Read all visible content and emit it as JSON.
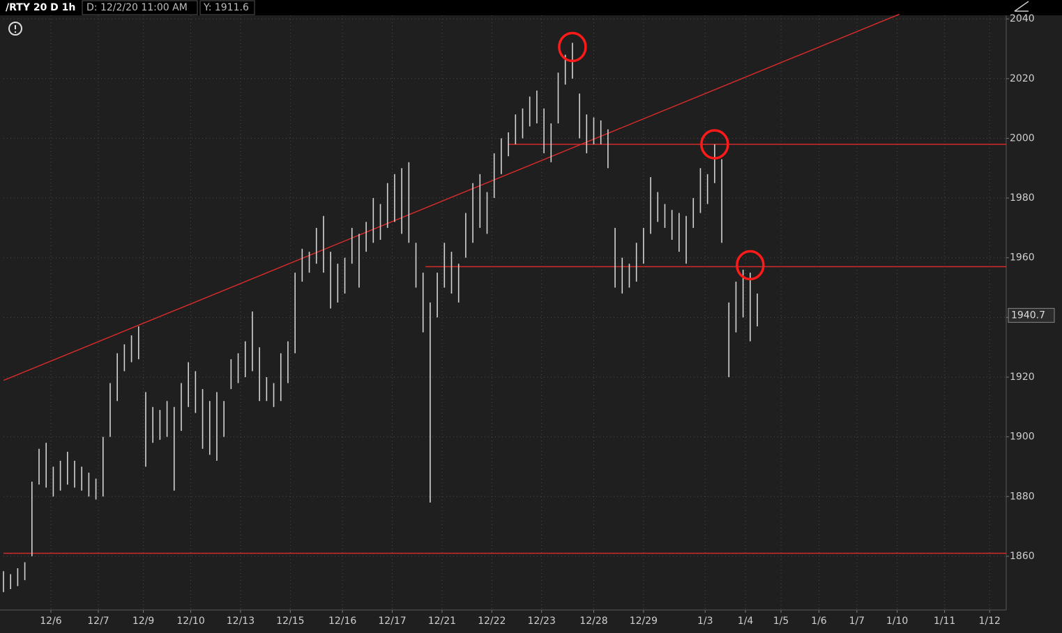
{
  "header": {
    "symbol": "/RTY 20 D 1h",
    "date": "D: 12/2/20 11:00 AM",
    "y": "Y: 1911.6"
  },
  "chart_data": {
    "type": "range-bar",
    "color": "#d4d4d4",
    "x": [
      0,
      3,
      6,
      9,
      12,
      15,
      18,
      21,
      24,
      27,
      30,
      33,
      36,
      39,
      42,
      45,
      48,
      51,
      54,
      57,
      60,
      63,
      66,
      69,
      72,
      75,
      78,
      81,
      84,
      87,
      90,
      93,
      96,
      99,
      102,
      105,
      108,
      111,
      114,
      117,
      120,
      123,
      126,
      129,
      132,
      135,
      138,
      141,
      144,
      147,
      150,
      153,
      156,
      159,
      162,
      165,
      168,
      171,
      174,
      177,
      180,
      183,
      186,
      189,
      192,
      195,
      198,
      201,
      204,
      207,
      210,
      213,
      216,
      219,
      222,
      225,
      228,
      231,
      234,
      237,
      240,
      243,
      246,
      249,
      252,
      255,
      258,
      261,
      264,
      267,
      270,
      273,
      276,
      279,
      282,
      285,
      288,
      291,
      294,
      297,
      300,
      303,
      306,
      309,
      312,
      315,
      318
    ],
    "highs": [
      1855,
      1854,
      1856,
      1858,
      1885,
      1896,
      1898,
      1890,
      1892,
      1895,
      1892,
      1890,
      1888,
      1886,
      1900,
      1918,
      1928,
      1931,
      1934,
      1937,
      1915,
      1910,
      1909,
      1912,
      1910,
      1918,
      1925,
      1922,
      1916,
      1912,
      1915,
      1912,
      1926,
      1928,
      1932,
      1942,
      1930,
      1920,
      1918,
      1928,
      1932,
      1955,
      1963,
      1962,
      1970,
      1974,
      1962,
      1958,
      1960,
      1970,
      1968,
      1972,
      1980,
      1978,
      1985,
      1988,
      1990,
      1992,
      1965,
      1955,
      1945,
      1955,
      1965,
      1962,
      1958,
      1975,
      1985,
      1988,
      1982,
      1995,
      2000,
      2002,
      2008,
      2010,
      2014,
      2016,
      2010,
      2005,
      2022,
      2028,
      2032,
      2015,
      2008,
      2007,
      2006,
      2003,
      1970,
      1960,
      1958,
      1965,
      1970,
      1987,
      1982,
      1978,
      1976,
      1975,
      1974,
      1980,
      1990,
      1988,
      1998,
      1993,
      1945,
      1952,
      1956,
      1955,
      1948
    ],
    "lows": [
      1848,
      1849,
      1850,
      1852,
      1860,
      1884,
      1883,
      1880,
      1882,
      1884,
      1883,
      1882,
      1880,
      1879,
      1880,
      1900,
      1912,
      1922,
      1925,
      1926,
      1890,
      1898,
      1899,
      1900,
      1882,
      1902,
      1910,
      1908,
      1896,
      1894,
      1892,
      1900,
      1916,
      1918,
      1920,
      1922,
      1912,
      1912,
      1910,
      1912,
      1918,
      1928,
      1952,
      1955,
      1958,
      1955,
      1943,
      1945,
      1948,
      1958,
      1950,
      1962,
      1965,
      1966,
      1970,
      1972,
      1968,
      1965,
      1950,
      1935,
      1878,
      1940,
      1950,
      1948,
      1945,
      1960,
      1965,
      1970,
      1968,
      1980,
      1988,
      1994,
      1998,
      2000,
      2004,
      2005,
      1995,
      1992,
      2005,
      2018,
      2020,
      2000,
      1995,
      1998,
      1998,
      1990,
      1950,
      1948,
      1950,
      1952,
      1958,
      1968,
      1972,
      1970,
      1966,
      1962,
      1958,
      1970,
      1975,
      1978,
      1985,
      1965,
      1920,
      1935,
      1940,
      1932,
      1937
    ],
    "xlim": [
      0,
      423
    ],
    "ylim": [
      1842,
      2044
    ],
    "xticks": [
      {
        "value": 20,
        "label": "12/6"
      },
      {
        "value": 40,
        "label": "12/7"
      },
      {
        "value": 59,
        "label": "12/9"
      },
      {
        "value": 79,
        "label": "12/10"
      },
      {
        "value": 100,
        "label": "12/13"
      },
      {
        "value": 121,
        "label": "12/15"
      },
      {
        "value": 143,
        "label": "12/16"
      },
      {
        "value": 164,
        "label": "12/17"
      },
      {
        "value": 185,
        "label": "12/21"
      },
      {
        "value": 206,
        "label": "12/22"
      },
      {
        "value": 227,
        "label": "12/23"
      },
      {
        "value": 249,
        "label": "12/28"
      },
      {
        "value": 270,
        "label": "12/29"
      },
      {
        "value": 296,
        "label": "1/3"
      },
      {
        "value": 313,
        "label": "1/4"
      },
      {
        "value": 328,
        "label": "1/5"
      },
      {
        "value": 344,
        "label": "1/6"
      },
      {
        "value": 360,
        "label": "1/7"
      },
      {
        "value": 377,
        "label": "1/10"
      },
      {
        "value": 397,
        "label": "1/11"
      },
      {
        "value": 416,
        "label": "1/12"
      }
    ],
    "yticks": [
      1860,
      1880,
      1900,
      1920,
      1940,
      1960,
      1980,
      2000,
      2020,
      2040
    ],
    "grid": true,
    "last_price": 1940.7,
    "hlines": [
      {
        "y": 1998,
        "x_start": 213
      },
      {
        "y": 1957,
        "x_start": 178
      },
      {
        "y": 1861,
        "x_start": 0
      }
    ],
    "trendline": {
      "x": [
        0,
        378
      ],
      "y": [
        1918.9,
        2041.6
      ]
    },
    "circles": [
      {
        "x": 240,
        "y": 2030.6
      },
      {
        "x": 300,
        "y": 1998
      },
      {
        "x": 315,
        "y": 1957.5
      }
    ],
    "annotation_color": "#d22b2b"
  }
}
